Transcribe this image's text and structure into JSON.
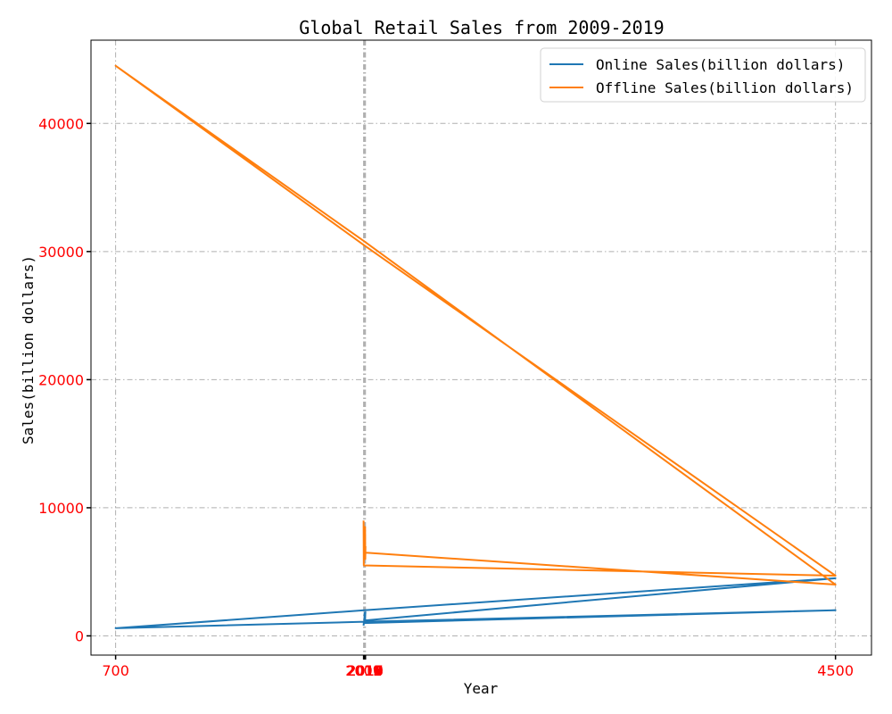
{
  "chart_data": {
    "type": "line",
    "title": "Global Retail Sales from 2009-2019",
    "xlabel": "Year",
    "ylabel": "Sales(billion dollars)",
    "grid": true,
    "legend_position": "top-right",
    "xlim": [
      570,
      4690
    ],
    "ylim": [
      -1500,
      46500
    ],
    "x_ticks": [
      700,
      2009,
      2010,
      2011,
      2012,
      2013,
      2014,
      2015,
      2016,
      2017,
      2018,
      2019,
      4500
    ],
    "x_tick_labels": [
      "700",
      "2009",
      "2010",
      "2011",
      "2012",
      "2013",
      "2014",
      "2015",
      "2016",
      "2017",
      "2018",
      "2019",
      "4500"
    ],
    "y_ticks": [
      0,
      10000,
      20000,
      30000,
      40000
    ],
    "y_tick_labels": [
      "0",
      "10000",
      "20000",
      "30000",
      "40000"
    ],
    "series": [
      {
        "name": "Online Sales(billion dollars)",
        "color": "#1f77b4",
        "points": [
          [
            2009,
            800
          ],
          [
            2010,
            1000
          ],
          [
            4500,
            2000
          ],
          [
            2011,
            1100
          ],
          [
            700,
            600
          ],
          [
            2012,
            2000
          ],
          [
            4500,
            4500
          ],
          [
            2013,
            1200
          ],
          [
            2014,
            1800
          ],
          [
            2015,
            1500
          ],
          [
            2016,
            1000
          ],
          [
            2017,
            1300
          ],
          [
            2018,
            1700
          ],
          [
            2019,
            1900
          ]
        ]
      },
      {
        "name": "Offline Sales(billion dollars)",
        "color": "#ff7f0e",
        "points": [
          [
            2009,
            9000
          ],
          [
            2010,
            5500
          ],
          [
            4500,
            4700
          ],
          [
            2011,
            30500
          ],
          [
            700,
            44500
          ],
          [
            2012,
            30800
          ],
          [
            4500,
            4000
          ],
          [
            2013,
            6500
          ],
          [
            2014,
            7500
          ],
          [
            2015,
            8000
          ],
          [
            2016,
            7000
          ],
          [
            2017,
            8500
          ],
          [
            2018,
            6000
          ],
          [
            2019,
            7000
          ]
        ]
      }
    ]
  }
}
